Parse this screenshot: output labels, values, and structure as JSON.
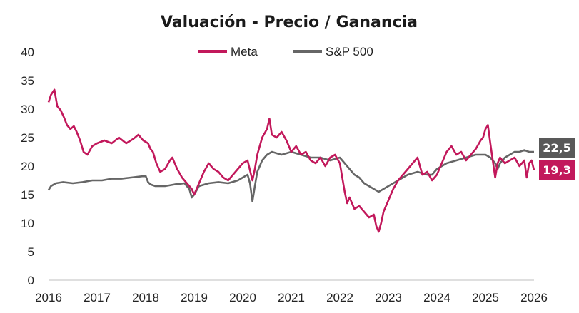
{
  "chart_data": {
    "type": "line",
    "title": "Valuación - Precio / Ganancia",
    "xlabel": "",
    "ylabel": "",
    "ylim": [
      0,
      40
    ],
    "xlim": [
      2016,
      2026
    ],
    "y_ticks": [
      "0",
      "5",
      "10",
      "15",
      "20",
      "25",
      "30",
      "35",
      "40"
    ],
    "x_ticks": [
      "2016",
      "2017",
      "2018",
      "2019",
      "2020",
      "2021",
      "2022",
      "2023",
      "2024",
      "2025",
      "2026"
    ],
    "legend_position": "top-center",
    "series": [
      {
        "name": "Meta",
        "color": "#c2185b",
        "end_label": "19,3",
        "x": [
          2016.0,
          2016.05,
          2016.12,
          2016.18,
          2016.25,
          2016.32,
          2016.38,
          2016.45,
          2016.52,
          2016.58,
          2016.65,
          2016.72,
          2016.8,
          2016.9,
          2017.0,
          2017.15,
          2017.3,
          2017.45,
          2017.6,
          2017.75,
          2017.85,
          2017.95,
          2018.05,
          2018.1,
          2018.15,
          2018.22,
          2018.3,
          2018.4,
          2018.5,
          2018.55,
          2018.65,
          2018.75,
          2018.85,
          2018.95,
          2019.0,
          2019.1,
          2019.2,
          2019.3,
          2019.4,
          2019.5,
          2019.6,
          2019.7,
          2019.8,
          2019.9,
          2020.0,
          2020.1,
          2020.2,
          2020.25,
          2020.3,
          2020.4,
          2020.5,
          2020.55,
          2020.6,
          2020.7,
          2020.8,
          2020.9,
          2021.0,
          2021.1,
          2021.2,
          2021.3,
          2021.4,
          2021.5,
          2021.6,
          2021.7,
          2021.8,
          2021.9,
          2022.0,
          2022.05,
          2022.1,
          2022.15,
          2022.2,
          2022.3,
          2022.4,
          2022.5,
          2022.6,
          2022.7,
          2022.75,
          2022.8,
          2022.85,
          2022.9,
          2023.0,
          2023.1,
          2023.2,
          2023.3,
          2023.4,
          2023.5,
          2023.6,
          2023.7,
          2023.8,
          2023.9,
          2024.0,
          2024.1,
          2024.2,
          2024.3,
          2024.4,
          2024.5,
          2024.6,
          2024.7,
          2024.8,
          2024.9,
          2024.95,
          2025.0,
          2025.05,
          2025.1,
          2025.15,
          2025.2,
          2025.25,
          2025.3,
          2025.4,
          2025.5,
          2025.6,
          2025.7,
          2025.8,
          2025.85,
          2025.9,
          2025.95,
          2026.0
        ],
        "values": [
          31.2,
          32.5,
          33.4,
          30.5,
          29.8,
          28.5,
          27.2,
          26.5,
          27.0,
          26.0,
          24.5,
          22.5,
          22.0,
          23.5,
          24.0,
          24.5,
          24.0,
          25.0,
          24.0,
          24.8,
          25.5,
          24.5,
          24.0,
          23.0,
          22.5,
          20.5,
          19.0,
          19.5,
          21.0,
          21.5,
          19.5,
          18.0,
          17.0,
          16.0,
          15.0,
          17.0,
          19.0,
          20.5,
          19.5,
          19.0,
          18.0,
          17.5,
          18.5,
          19.5,
          20.5,
          21.0,
          17.5,
          19.5,
          22.0,
          25.0,
          26.5,
          28.3,
          25.5,
          25.0,
          26.0,
          24.5,
          22.5,
          23.5,
          22.0,
          22.5,
          21.0,
          20.5,
          21.5,
          20.0,
          21.5,
          22.0,
          20.5,
          18.0,
          15.5,
          13.5,
          14.5,
          12.5,
          13.0,
          12.0,
          11.0,
          11.5,
          9.5,
          8.5,
          10.0,
          12.0,
          14.0,
          16.0,
          17.5,
          18.5,
          19.5,
          20.5,
          21.5,
          18.5,
          19.0,
          17.5,
          18.5,
          20.5,
          22.5,
          23.5,
          22.0,
          22.5,
          21.0,
          22.0,
          23.0,
          24.5,
          25.0,
          26.5,
          27.2,
          24.0,
          21.0,
          18.0,
          20.5,
          21.5,
          20.5,
          21.0,
          21.5,
          20.0,
          21.0,
          18.0,
          20.5,
          21.0,
          19.3
        ]
      },
      {
        "name": "S&P 500",
        "color": "#666666",
        "end_label": "22,5",
        "x": [
          2016.0,
          2016.05,
          2016.15,
          2016.3,
          2016.5,
          2016.7,
          2016.9,
          2017.1,
          2017.3,
          2017.5,
          2017.7,
          2017.9,
          2018.0,
          2018.05,
          2018.1,
          2018.2,
          2018.4,
          2018.6,
          2018.8,
          2018.9,
          2018.95,
          2019.0,
          2019.1,
          2019.3,
          2019.5,
          2019.7,
          2019.9,
          2020.0,
          2020.1,
          2020.15,
          2020.2,
          2020.25,
          2020.3,
          2020.4,
          2020.5,
          2020.6,
          2020.8,
          2021.0,
          2021.2,
          2021.4,
          2021.6,
          2021.8,
          2022.0,
          2022.1,
          2022.2,
          2022.3,
          2022.4,
          2022.5,
          2022.6,
          2022.7,
          2022.8,
          2022.9,
          2023.0,
          2023.2,
          2023.4,
          2023.6,
          2023.8,
          2023.9,
          2024.0,
          2024.2,
          2024.4,
          2024.6,
          2024.8,
          2025.0,
          2025.1,
          2025.2,
          2025.25,
          2025.3,
          2025.4,
          2025.5,
          2025.6,
          2025.7,
          2025.8,
          2025.9,
          2026.0
        ],
        "values": [
          15.8,
          16.5,
          17.0,
          17.2,
          17.0,
          17.2,
          17.5,
          17.5,
          17.8,
          17.8,
          18.0,
          18.2,
          18.3,
          17.2,
          16.8,
          16.5,
          16.5,
          16.8,
          17.0,
          16.0,
          14.5,
          15.0,
          16.5,
          17.0,
          17.2,
          17.0,
          17.5,
          18.0,
          18.5,
          17.0,
          13.8,
          16.5,
          19.0,
          21.0,
          22.0,
          22.5,
          22.0,
          22.5,
          22.0,
          21.5,
          21.5,
          21.0,
          21.5,
          20.5,
          19.5,
          18.5,
          18.0,
          17.0,
          16.5,
          16.0,
          15.5,
          16.0,
          16.5,
          17.5,
          18.5,
          19.0,
          18.5,
          18.5,
          19.5,
          20.5,
          21.0,
          21.5,
          22.0,
          22.0,
          21.5,
          20.5,
          19.5,
          20.5,
          21.5,
          22.0,
          22.5,
          22.5,
          22.8,
          22.5,
          22.5
        ]
      }
    ]
  }
}
